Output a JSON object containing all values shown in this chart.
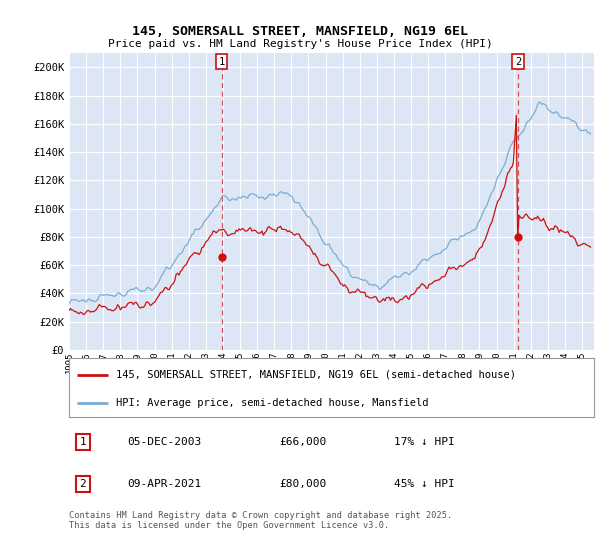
{
  "title": "145, SOMERSALL STREET, MANSFIELD, NG19 6EL",
  "subtitle": "Price paid vs. HM Land Registry's House Price Index (HPI)",
  "ylim": [
    0,
    210000
  ],
  "yticks": [
    0,
    20000,
    40000,
    60000,
    80000,
    100000,
    120000,
    140000,
    160000,
    180000,
    200000
  ],
  "bg_color": "#dce6f5",
  "grid_color": "#ffffff",
  "hpi_color": "#7badd4",
  "price_color": "#cc1111",
  "marker1_x": 2003.92,
  "marker1_price": 66000,
  "marker1_date": "05-DEC-2003",
  "marker1_label": "17% ↓ HPI",
  "marker2_x": 2021.25,
  "marker2_price": 80000,
  "marker2_date": "09-APR-2021",
  "marker2_label": "45% ↓ HPI",
  "footnote": "Contains HM Land Registry data © Crown copyright and database right 2025.\nThis data is licensed under the Open Government Licence v3.0.",
  "legend_line1": "145, SOMERSALL STREET, MANSFIELD, NG19 6EL (semi-detached house)",
  "legend_line2": "HPI: Average price, semi-detached house, Mansfield"
}
